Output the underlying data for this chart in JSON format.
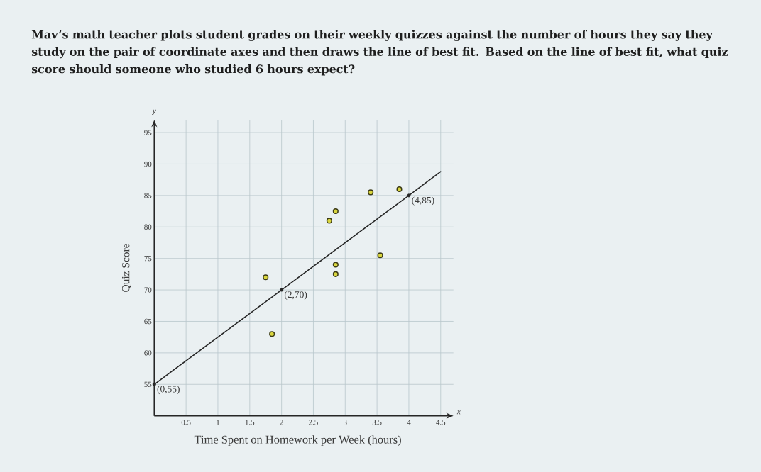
{
  "chart_data": {
    "type": "scatter",
    "title": "Mav’s math teacher plots student grades on their weekly quizzes against the number of hours they say they study on the pair of coordinate axes and then draws the line of best fit. Based on the line of best fit, what quiz score should someone who studied 6 hours expect?",
    "xlabel": "Time Spent on Homework per Week (hours)",
    "ylabel": "Quiz Score",
    "x": [
      1.75,
      1.85,
      2.75,
      2.85,
      2.85,
      2.85,
      3.4,
      3.55,
      3.85
    ],
    "series": [
      {
        "color": "#d9d63e",
        "values": [
          72,
          63,
          81,
          82.5,
          74,
          72.5,
          85.5,
          75.5,
          86
        ]
      },
      {
        "type": "line",
        "marker": "none",
        "color": "#262626",
        "x": [
          0,
          2,
          4,
          4.5
        ],
        "values": [
          55,
          70,
          85,
          88.8
        ]
      }
    ],
    "xlim": [
      0,
      4.7
    ],
    "ylim": [
      50,
      97
    ],
    "xticks": [
      0.5,
      1,
      1.5,
      2,
      2.5,
      3,
      3.5,
      4,
      4.5
    ],
    "yticks": [
      55,
      60,
      65,
      70,
      75,
      80,
      85,
      90,
      95
    ],
    "grid": true,
    "marker": "circle",
    "annotations": [
      "y",
      "x",
      {
        "text": "(0,55)",
        "x": 0,
        "y": 55
      },
      {
        "text": "(2,70)",
        "x": 2,
        "y": 70
      },
      {
        "text": "(4,85)",
        "x": 4,
        "y": 85
      }
    ]
  }
}
